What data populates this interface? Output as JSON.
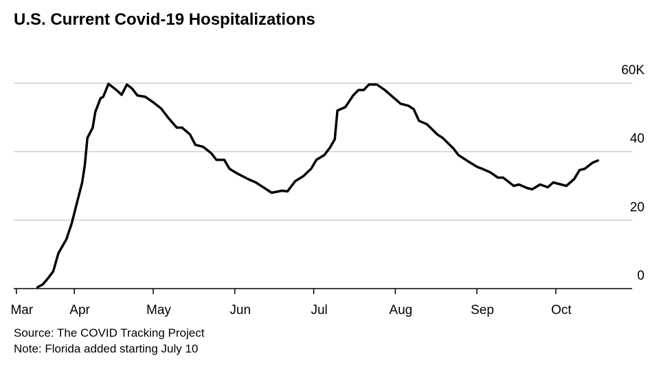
{
  "chart_data": {
    "type": "line",
    "title": "U.S. Current Covid-19 Hospitalizations",
    "source": "Source: The COVID Tracking Project",
    "note": "Note: Florida added starting July 10",
    "xlim": [
      8,
      243
    ],
    "ylim": [
      0,
      60
    ],
    "xticks": [
      {
        "value": 9,
        "label": "Mar"
      },
      {
        "value": 31,
        "label": "Apr"
      },
      {
        "value": 61,
        "label": "May"
      },
      {
        "value": 92,
        "label": "Jun"
      },
      {
        "value": 122,
        "label": "Jul"
      },
      {
        "value": 153,
        "label": "Aug"
      },
      {
        "value": 184,
        "label": "Sep"
      },
      {
        "value": 214,
        "label": "Oct"
      }
    ],
    "yticks": [
      0,
      20,
      40,
      {
        "value": 60,
        "label": "60K"
      }
    ],
    "grid": true,
    "series": [
      {
        "color": "#000000",
        "x": [
          17,
          19,
          21,
          23,
          25,
          28,
          30,
          32,
          34,
          35,
          36,
          38,
          39,
          41,
          42,
          44,
          45,
          47,
          49,
          51,
          53,
          55,
          58,
          61,
          64,
          67,
          70,
          72,
          75,
          77,
          80,
          83,
          85,
          88,
          90,
          93,
          97,
          100,
          104,
          106,
          110,
          112,
          115,
          118,
          121,
          123,
          126,
          128,
          130,
          131,
          134,
          137,
          139,
          141,
          143,
          146,
          149,
          152,
          155,
          158,
          160,
          162,
          165,
          169,
          171,
          175,
          177,
          181,
          184,
          186,
          189,
          192,
          194,
          198,
          200,
          203,
          205,
          208,
          211,
          213,
          216,
          218,
          221,
          223,
          225,
          228,
          230
        ],
        "values": [
          0.4,
          1.2,
          3,
          5,
          10.4,
          14.4,
          19,
          25,
          31,
          36,
          44,
          47,
          51.6,
          55.6,
          56,
          59.8,
          59.2,
          58,
          56.6,
          59.6,
          58.4,
          56.4,
          56,
          54.4,
          52.6,
          49.6,
          47,
          47,
          45,
          42,
          41.4,
          39.6,
          37.6,
          37.6,
          35,
          33.6,
          32,
          31,
          29,
          28,
          28.6,
          28.4,
          31.4,
          32.8,
          35,
          37.6,
          39,
          41,
          43.6,
          52,
          53,
          56.4,
          58,
          58,
          59.6,
          59.6,
          58,
          56,
          54,
          53.4,
          52.4,
          49,
          48,
          45,
          44,
          41,
          39,
          37,
          35.6,
          35,
          34,
          32.4,
          32.4,
          30,
          30.4,
          29.4,
          29,
          30.4,
          29.6,
          31,
          30.4,
          30,
          32,
          34.6,
          35,
          36.8,
          37.4
        ]
      }
    ]
  }
}
